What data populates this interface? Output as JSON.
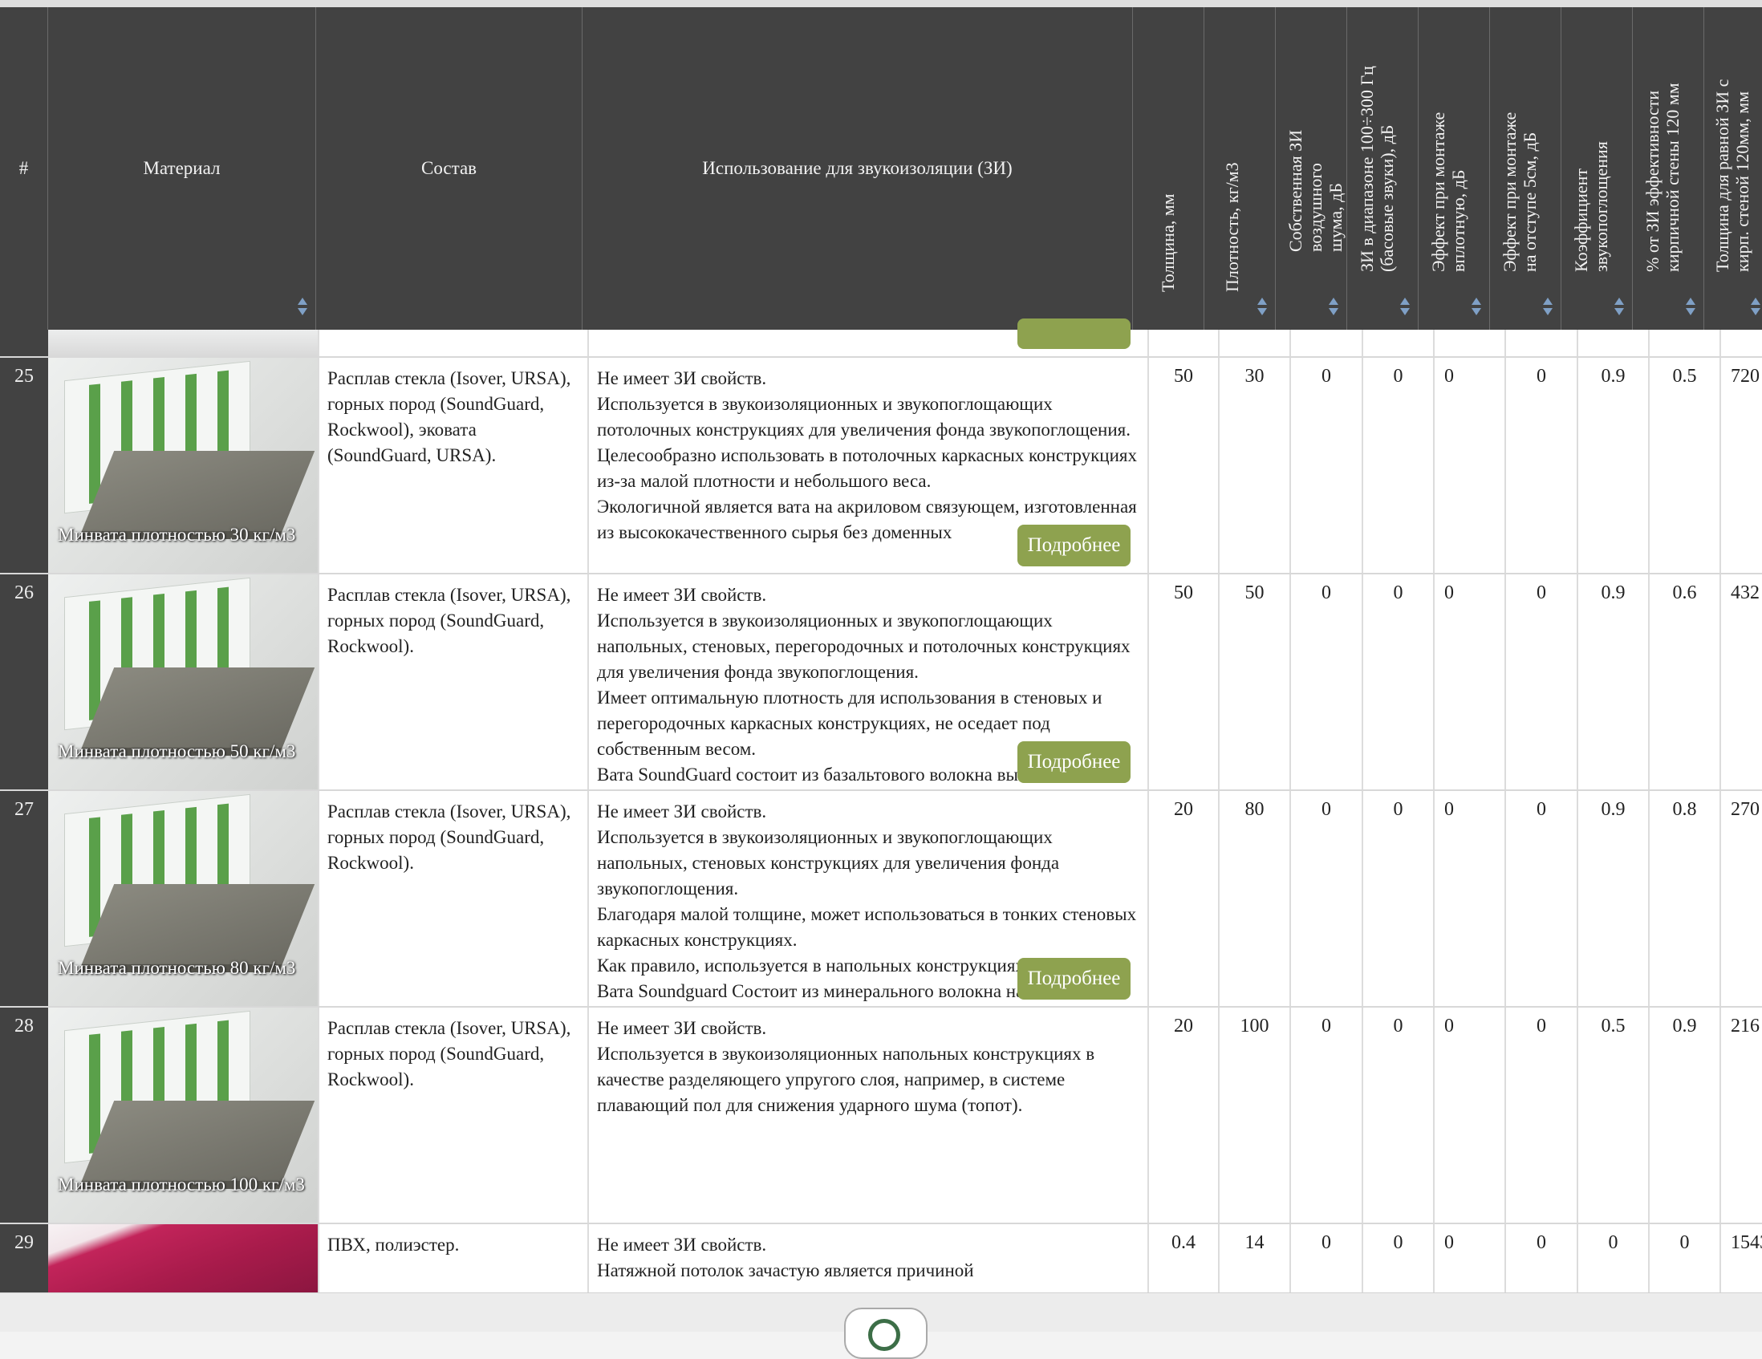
{
  "header": {
    "num": "#",
    "material": "Материал",
    "sostav": "Состав",
    "ispolzovanie": "Использование для звукоизоляции (ЗИ)",
    "tolshina": "Толщина, мм",
    "plotnost": "Плотность, кг/м3",
    "sobstv": "Собственная ЗИ воздушного шума, дБ",
    "bass": "ЗИ в диапазоне 100÷300 Гц (басовые звуки), дБ",
    "vplot": "Эффект при монтаже вплотную, дБ",
    "otstup": "Эффект при монтаже на отступе 5см, дБ",
    "koef": "Коэффициент звукопоглощения",
    "procent": "% от ЗИ эффективности кирпичной стены 120 мм",
    "tolsh_rav": "Толщина для равной ЗИ с кирп. стеной 120мм, мм"
  },
  "more_label": "Подробнее",
  "rows": [
    {
      "num": "25",
      "material": "Минвата плотностью 30 кг/м3",
      "sostav": "Расплав стекла (Isover, URSA), горных пород (SoundGuard, Rockwool), эковата (SoundGuard, URSA).",
      "use": [
        "Не имеет ЗИ свойств.",
        "Используется в звукоизоляционных и звукопоглощающих потолочных конструкциях для увеличения фонда звукопоглощения.",
        "Целесообразно использовать в потолочных каркасных конструкциях из-за малой плотности и небольшого веса.",
        "Экологичной является вата на акриловом связующем, изготовленная из высококачественного сырья без доменных"
      ],
      "tolshina": "50",
      "plotnost": "30",
      "sobstv": "0",
      "bass": "0",
      "vplot": "0",
      "otstup": "0",
      "koef": "0.9",
      "procent": "0.5",
      "tolsh_rav": "720"
    },
    {
      "num": "26",
      "material": "Минвата плотностью 50 кг/м3",
      "sostav": "Расплав стекла (Isover, URSA), горных пород (SoundGuard, Rockwool).",
      "use": [
        "Не имеет ЗИ свойств.",
        "Используется в звукоизоляционных и звукопоглощающих напольных, стеновых, перегородочных и потолочных конструкциях для увеличения фонда звукопоглощения.",
        "Имеет оптимальную плотность для использования в стеновых и перегородочных каркасных конструкциях, не оседает под собственным весом.",
        "Вата SoundGuard состоит из базальтового волокна высокого"
      ],
      "tolshina": "50",
      "plotnost": "50",
      "sobstv": "0",
      "bass": "0",
      "vplot": "0",
      "otstup": "0",
      "koef": "0.9",
      "procent": "0.6",
      "tolsh_rav": "432"
    },
    {
      "num": "27",
      "material": "Минвата плотностью 80 кг/м3",
      "sostav": "Расплав стекла (Isover, URSA), горных пород (SoundGuard, Rockwool).",
      "use": [
        "Не имеет ЗИ свойств.",
        "Используется в звукоизоляционных и звукопоглощающих напольных, стеновых конструкциях для увеличения фонда звукопоглощения.",
        "Благодаря малой толщине, может использоваться в тонких стеновых каркасных конструкциях.",
        "Как правило, используется в напольных конструкциях.",
        "Вата Soundguard Состоит из минерального волокна на"
      ],
      "tolshina": "20",
      "plotnost": "80",
      "sobstv": "0",
      "bass": "0",
      "vplot": "0",
      "otstup": "0",
      "koef": "0.9",
      "procent": "0.8",
      "tolsh_rav": "270"
    },
    {
      "num": "28",
      "material": "Минвата плотностью 100 кг/м3",
      "sostav": "Расплав стекла (Isover, URSA), горных пород (SoundGuard, Rockwool).",
      "use": [
        "Не имеет ЗИ свойств.",
        "Используется в звукоизоляционных напольных конструкциях в качестве разделяющего упругого слоя, например, в системе плавающий пол для снижения ударного шума (топот)."
      ],
      "tolshina": "20",
      "plotnost": "100",
      "sobstv": "0",
      "bass": "0",
      "vplot": "0",
      "otstup": "0",
      "koef": "0.5",
      "procent": "0.9",
      "tolsh_rav": "216"
    },
    {
      "num": "29",
      "material": "",
      "sostav": "ПВХ, полиэстер.",
      "use": [
        "Не имеет ЗИ свойств.",
        "Натяжной потолок зачастую является причиной"
      ],
      "tolshina": "0.4",
      "plotnost": "14",
      "sobstv": "0",
      "bass": "0",
      "vplot": "0",
      "otstup": "0",
      "koef": "0",
      "procent": "0",
      "tolsh_rav": "1543"
    }
  ]
}
